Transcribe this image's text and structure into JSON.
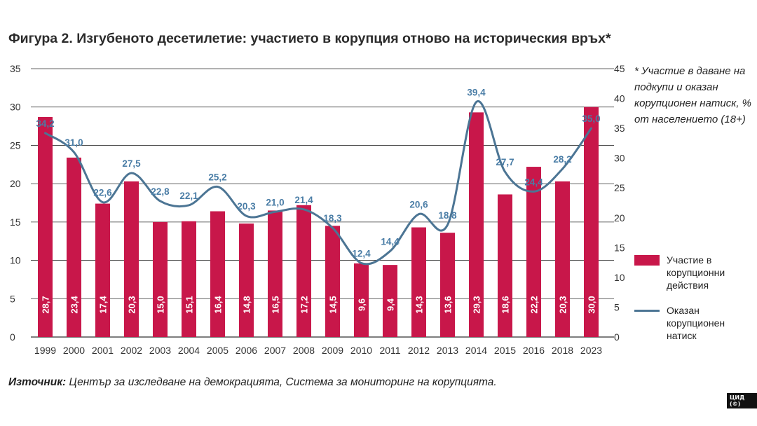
{
  "header": {
    "title": "Фигура 2. Изгубеното десетилетие: участието в корупция отново на историческия връх*"
  },
  "note": "* Участие в даване на подкупи и оказан корупционен натиск, % от населението (18+)",
  "legend": {
    "bars_label": "Участие в корупционни действия",
    "line_label": "Оказан корупционен натиск"
  },
  "source": {
    "prefix": "Източник:",
    "text": " Център за изследване на демокрацията, Система за мониторинг на корупцията."
  },
  "badge": "ЦИД (©)",
  "colors": {
    "bar": "#c8174a",
    "line": "#4c7594",
    "line_label": "#4a7da6",
    "grid": "#333333"
  },
  "chart_data": {
    "type": "bar",
    "categories": [
      "1999",
      "2000",
      "2001",
      "2002",
      "2003",
      "2004",
      "2005",
      "2006",
      "2007",
      "2008",
      "2009",
      "2010",
      "2011",
      "2012",
      "2013",
      "2014",
      "2015",
      "2016",
      "2018",
      "2023"
    ],
    "series": [
      {
        "name": "Участие в корупционни действия",
        "type": "bar",
        "axis": "left",
        "values": [
          28.7,
          23.4,
          17.4,
          20.3,
          15.0,
          15.1,
          16.4,
          14.8,
          16.5,
          17.2,
          14.5,
          9.6,
          9.4,
          14.3,
          13.6,
          29.3,
          18.6,
          22.2,
          20.3,
          30.0
        ],
        "labels": [
          "28,7",
          "23,4",
          "17,4",
          "20,3",
          "15,0",
          "15,1",
          "16,4",
          "14,8",
          "16,5",
          "17,2",
          "14,5",
          "9,6",
          "9,4",
          "14,3",
          "13,6",
          "29,3",
          "18,6",
          "22,2",
          "20,3",
          "30,0"
        ]
      },
      {
        "name": "Оказан корупционен натиск",
        "type": "line",
        "axis": "right",
        "values": [
          34.2,
          31.0,
          22.6,
          27.5,
          22.8,
          22.1,
          25.2,
          20.3,
          21.0,
          21.4,
          18.3,
          12.4,
          14.4,
          20.6,
          18.8,
          39.4,
          27.7,
          24.4,
          28.2,
          35.0
        ],
        "labels": [
          "34,2",
          "31,0",
          "22,6",
          "27,5",
          "22,8",
          "22,1",
          "25,2",
          "20,3",
          "21,0",
          "21,4",
          "18,3",
          "12,4",
          "14,4",
          "20,6",
          "18,8",
          "39,4",
          "27,7",
          "24,4",
          "28,2",
          "35,0"
        ]
      }
    ],
    "y_left": {
      "range": [
        0,
        35
      ],
      "ticks": [
        "0",
        "5",
        "10",
        "15",
        "20",
        "25",
        "30",
        "35"
      ]
    },
    "y_right": {
      "range": [
        0,
        45
      ],
      "ticks": [
        "0",
        "5",
        "10",
        "15",
        "20",
        "25",
        "30",
        "35",
        "40",
        "45"
      ]
    },
    "grid": true,
    "legend_position": "right"
  }
}
